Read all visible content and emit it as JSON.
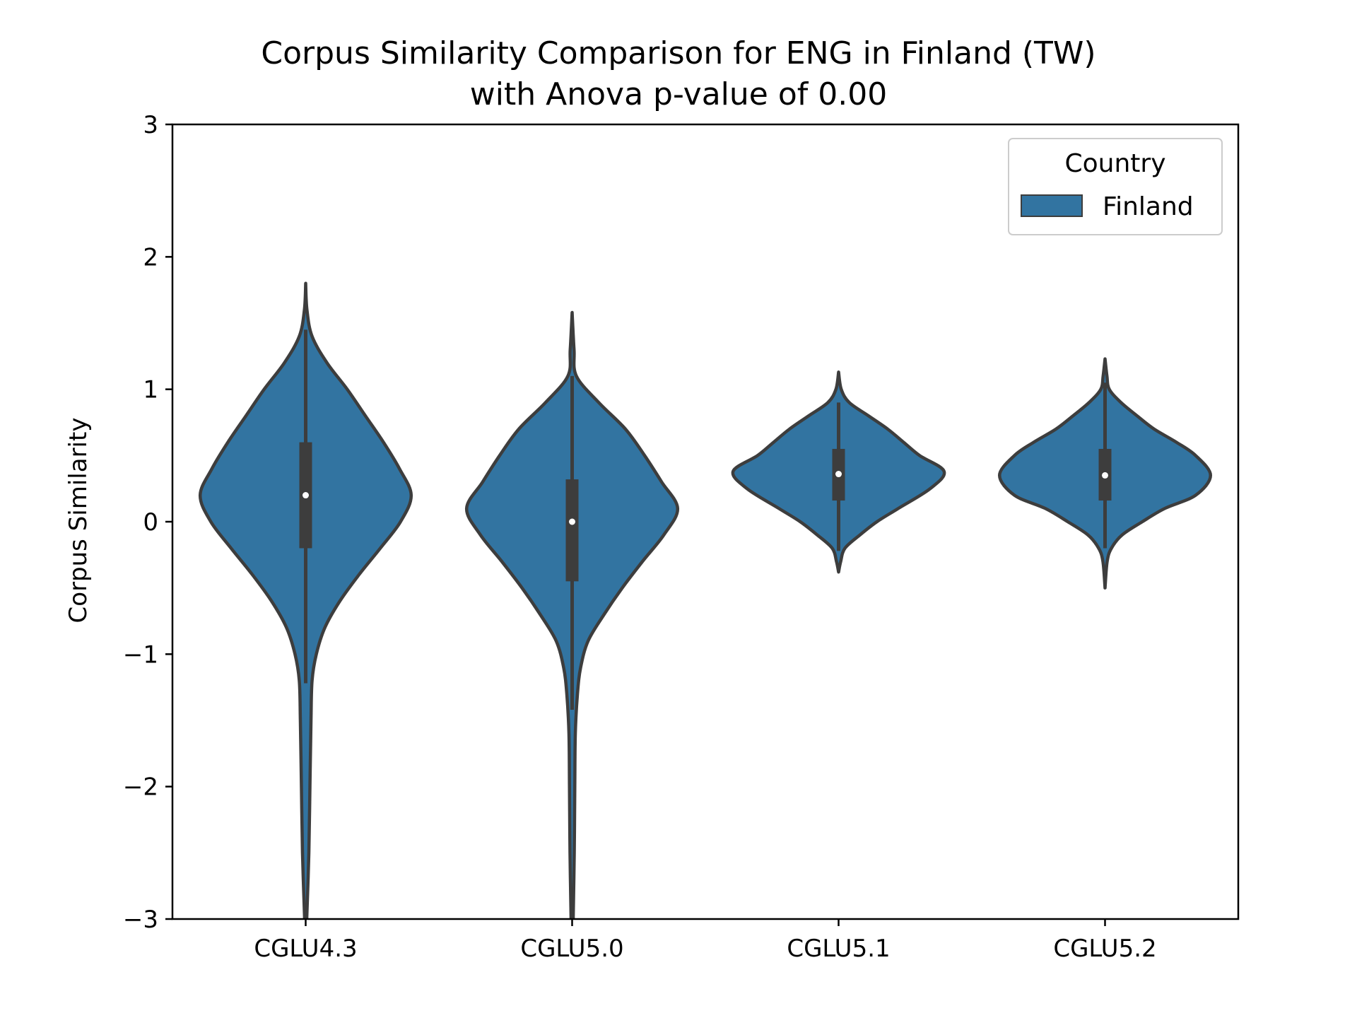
{
  "chart_data": {
    "type": "violin",
    "title": "Corpus Similarity Comparison for ENG in Finland (TW)",
    "subtitle": "with Anova p-value of 0.00",
    "xlabel": "",
    "ylabel": "Corpus Similarity",
    "ylim": [
      -3,
      3
    ],
    "yticks": [
      -3,
      -2,
      -1,
      0,
      1,
      2,
      3
    ],
    "ytick_labels": [
      "−3",
      "−2",
      "−1",
      "0",
      "1",
      "2",
      "3"
    ],
    "categories": [
      "CGLU4.3",
      "CGLU5.0",
      "CGLU5.1",
      "CGLU5.2"
    ],
    "legend": {
      "title": "Country",
      "entries": [
        "Finland"
      ],
      "placement": "top-right"
    },
    "grid": false,
    "colors": {
      "fill": "#3274a1",
      "edge": "#3d3d3d",
      "box": "#3d3d3d",
      "median": "#ffffff"
    },
    "series": [
      {
        "name": "Finland",
        "violins": [
          {
            "category": "CGLU4.3",
            "median": 0.2,
            "q1": -0.2,
            "q3": 0.6,
            "whisker_low": -1.22,
            "whisker_high": 1.45,
            "profile": [
              [
                1.8,
                0.0
              ],
              [
                1.6,
                0.012
              ],
              [
                1.4,
                0.06
              ],
              [
                1.2,
                0.2
              ],
              [
                1.0,
                0.39
              ],
              [
                0.8,
                0.56
              ],
              [
                0.6,
                0.73
              ],
              [
                0.4,
                0.88
              ],
              [
                0.2,
                0.99
              ],
              [
                0.0,
                0.89
              ],
              [
                -0.2,
                0.7
              ],
              [
                -0.4,
                0.5
              ],
              [
                -0.6,
                0.32
              ],
              [
                -0.8,
                0.18
              ],
              [
                -1.0,
                0.1
              ],
              [
                -1.2,
                0.06
              ],
              [
                -1.5,
                0.05
              ],
              [
                -2.0,
                0.04
              ],
              [
                -2.5,
                0.03
              ],
              [
                -3.0,
                0.01
              ]
            ]
          },
          {
            "category": "CGLU5.0",
            "median": 0.0,
            "q1": -0.45,
            "q3": 0.32,
            "whisker_low": -1.42,
            "whisker_high": 1.1,
            "profile": [
              [
                1.58,
                0.0
              ],
              [
                1.3,
                0.018
              ],
              [
                1.1,
                0.04
              ],
              [
                0.9,
                0.25
              ],
              [
                0.7,
                0.5
              ],
              [
                0.5,
                0.68
              ],
              [
                0.3,
                0.84
              ],
              [
                0.1,
                0.99
              ],
              [
                -0.1,
                0.86
              ],
              [
                -0.3,
                0.66
              ],
              [
                -0.5,
                0.47
              ],
              [
                -0.7,
                0.3
              ],
              [
                -0.9,
                0.15
              ],
              [
                -1.1,
                0.08
              ],
              [
                -1.3,
                0.05
              ],
              [
                -1.6,
                0.03
              ],
              [
                -2.0,
                0.025
              ],
              [
                -2.5,
                0.02
              ],
              [
                -3.0,
                0.01
              ]
            ]
          },
          {
            "category": "CGLU5.1",
            "median": 0.36,
            "q1": 0.16,
            "q3": 0.55,
            "whisker_low": -0.22,
            "whisker_high": 0.9,
            "profile": [
              [
                1.13,
                0.0
              ],
              [
                1.0,
                0.025
              ],
              [
                0.9,
                0.1
              ],
              [
                0.8,
                0.28
              ],
              [
                0.7,
                0.46
              ],
              [
                0.6,
                0.61
              ],
              [
                0.5,
                0.76
              ],
              [
                0.38,
                0.99
              ],
              [
                0.25,
                0.86
              ],
              [
                0.1,
                0.56
              ],
              [
                0.0,
                0.36
              ],
              [
                -0.1,
                0.2
              ],
              [
                -0.2,
                0.06
              ],
              [
                -0.3,
                0.02
              ],
              [
                -0.38,
                0.0
              ]
            ]
          },
          {
            "category": "CGLU5.2",
            "median": 0.35,
            "q1": 0.16,
            "q3": 0.55,
            "whisker_low": -0.2,
            "whisker_high": 1.05,
            "profile": [
              [
                1.23,
                0.0
              ],
              [
                1.1,
                0.018
              ],
              [
                1.0,
                0.04
              ],
              [
                0.9,
                0.15
              ],
              [
                0.8,
                0.3
              ],
              [
                0.7,
                0.46
              ],
              [
                0.6,
                0.67
              ],
              [
                0.5,
                0.85
              ],
              [
                0.35,
                0.99
              ],
              [
                0.2,
                0.85
              ],
              [
                0.1,
                0.56
              ],
              [
                0.0,
                0.35
              ],
              [
                -0.1,
                0.16
              ],
              [
                -0.2,
                0.06
              ],
              [
                -0.3,
                0.02
              ],
              [
                -0.5,
                0.0
              ]
            ]
          }
        ]
      }
    ]
  }
}
